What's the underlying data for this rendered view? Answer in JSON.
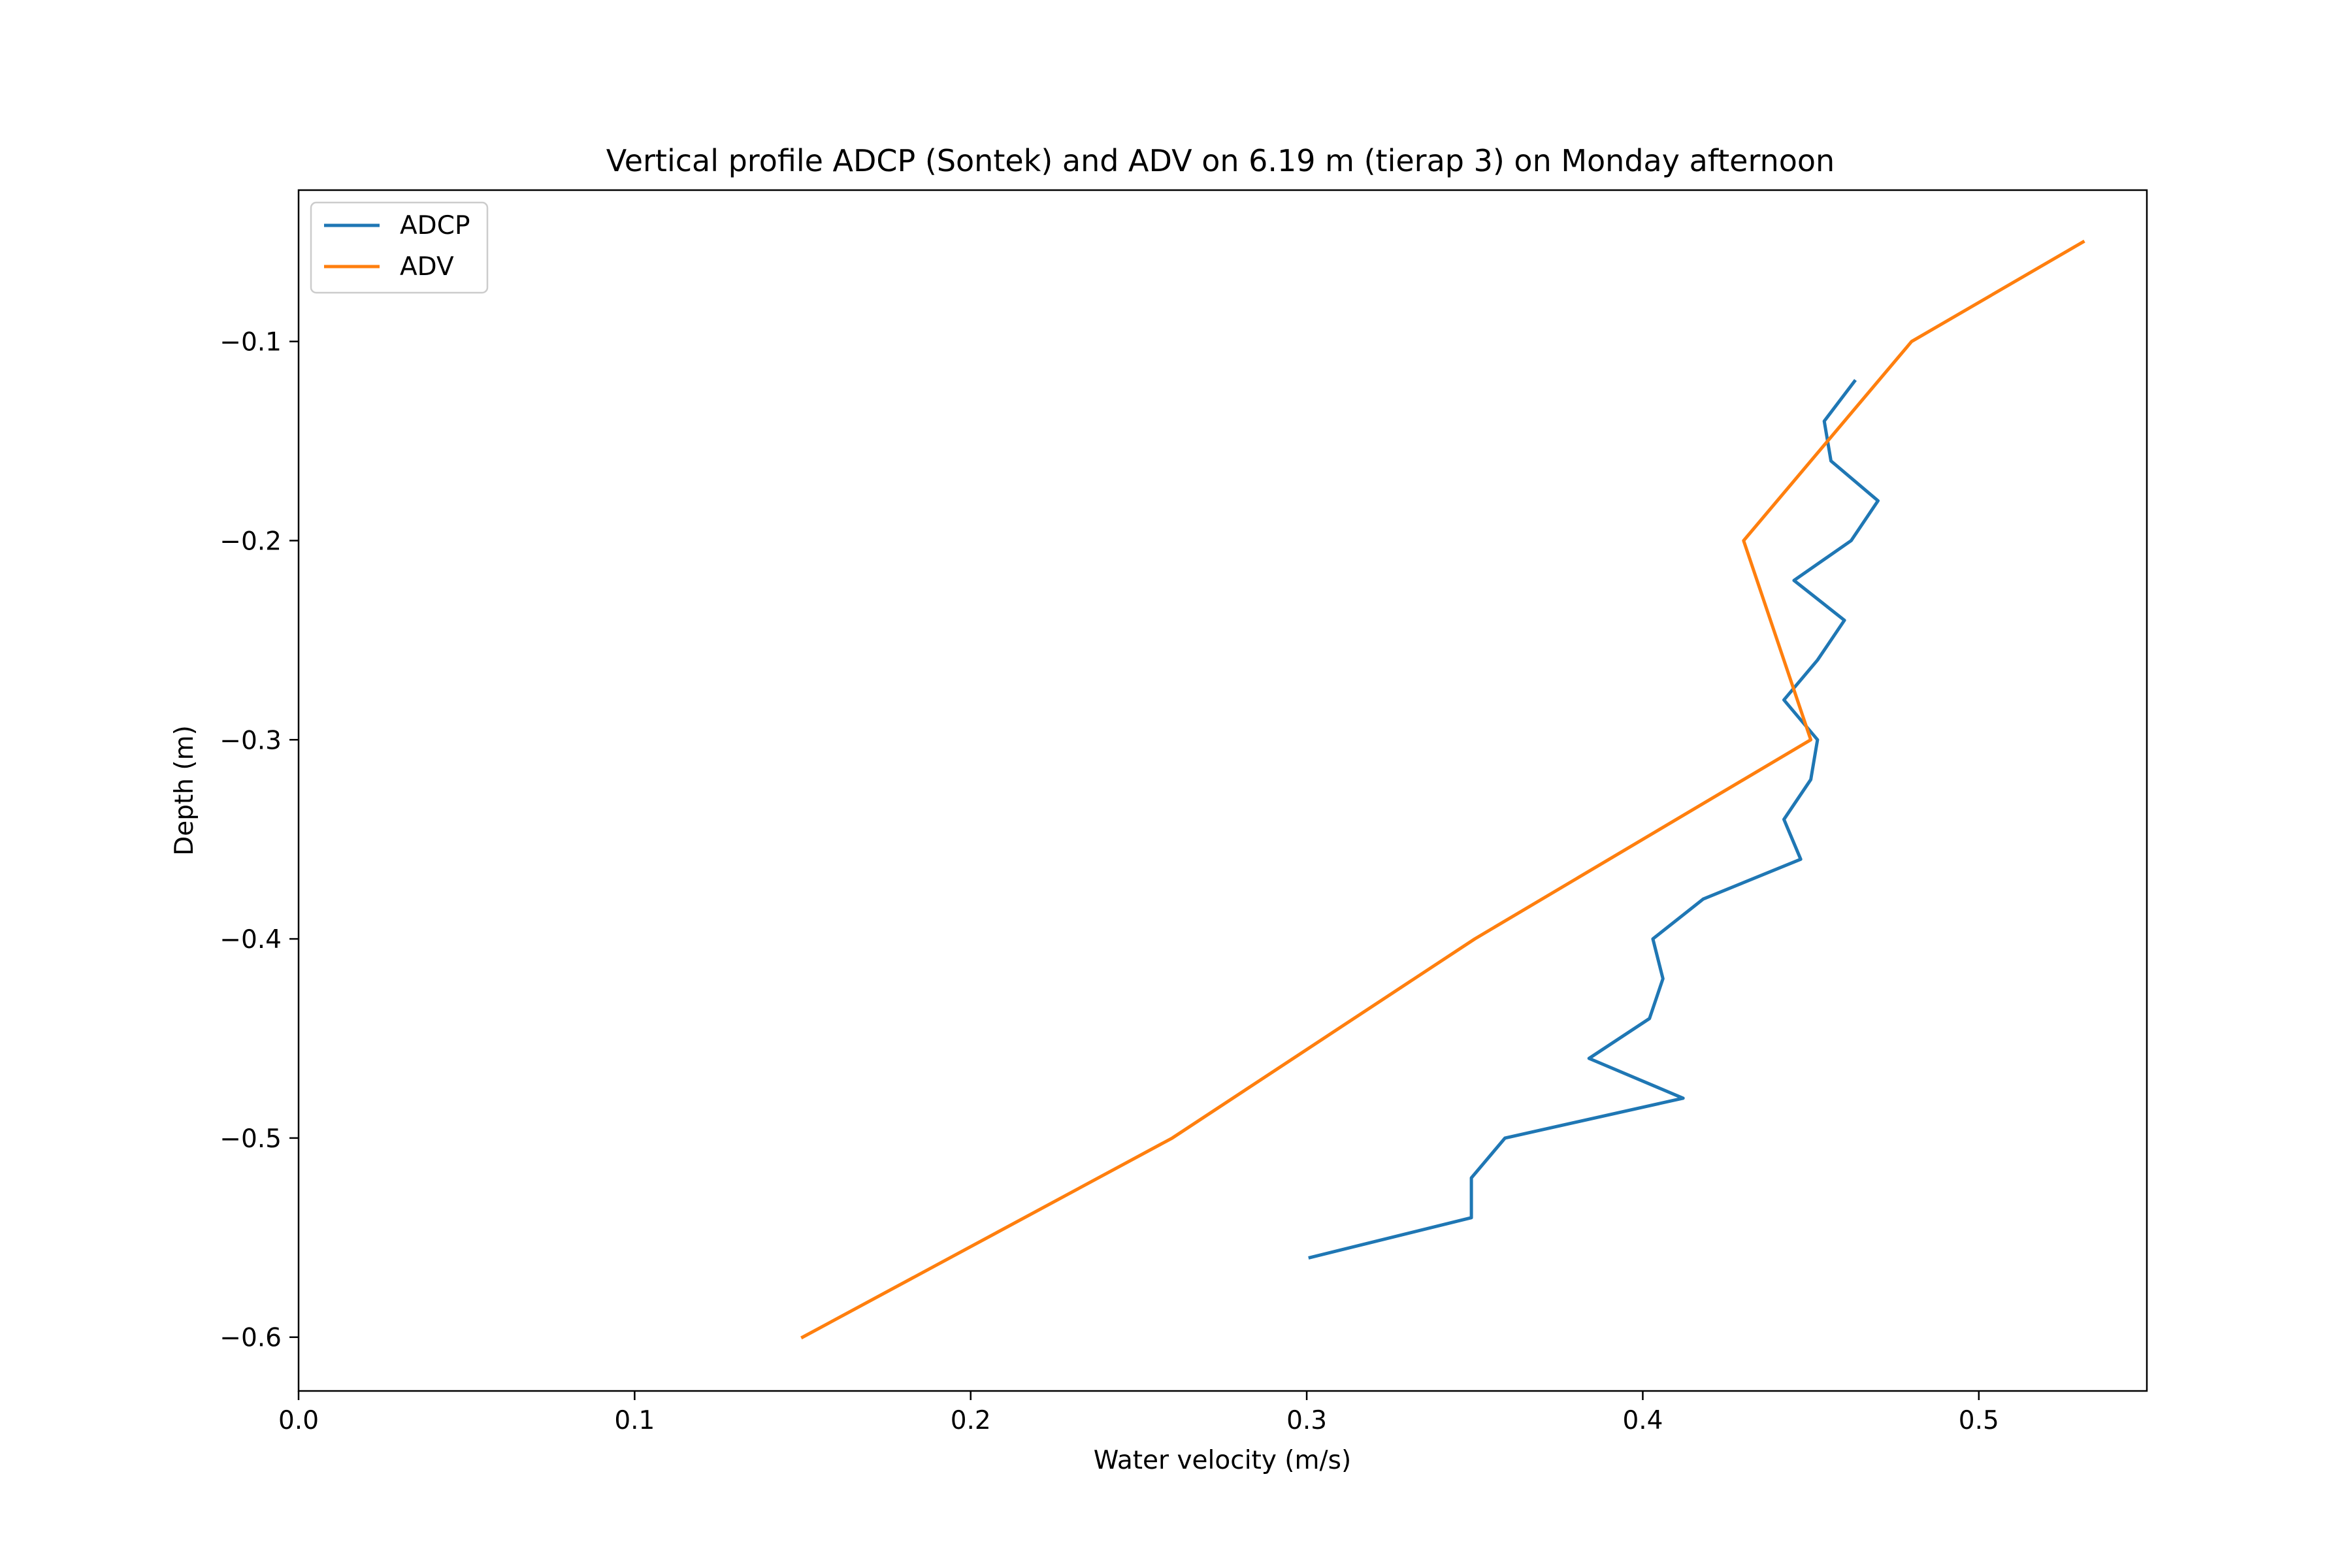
{
  "colors": {
    "adcp": "#1f77b4",
    "adv": "#ff7f0e",
    "axes": "#000000",
    "background": "#ffffff"
  },
  "chart_data": {
    "type": "line",
    "title": "Vertical profile ADCP (Sontek) and ADV on 6.19 m (tierap 3) on Monday afternoon",
    "xlabel": "Water velocity (m/s)",
    "ylabel": "Depth (m)",
    "xlim": [
      0.0,
      0.55
    ],
    "ylim": [
      -0.627,
      -0.024
    ],
    "xticks": [
      0.0,
      0.1,
      0.2,
      0.3,
      0.4,
      0.5
    ],
    "xtick_labels": [
      "0.0",
      "0.1",
      "0.2",
      "0.3",
      "0.4",
      "0.5"
    ],
    "yticks": [
      -0.1,
      -0.2,
      -0.3,
      -0.4,
      -0.5,
      -0.6
    ],
    "ytick_labels": [
      "−0.1",
      "−0.2",
      "−0.3",
      "−0.4",
      "−0.5",
      "−0.6"
    ],
    "grid": false,
    "legend_position": "top-left",
    "series": [
      {
        "name": "ADCP",
        "color_key": "adcp",
        "x": [
          0.463,
          0.454,
          0.456,
          0.47,
          0.462,
          0.445,
          0.46,
          0.452,
          0.442,
          0.452,
          0.45,
          0.442,
          0.447,
          0.418,
          0.403,
          0.406,
          0.402,
          0.384,
          0.412,
          0.359,
          0.349,
          0.349,
          0.301
        ],
        "y": [
          -0.12,
          -0.14,
          -0.16,
          -0.18,
          -0.2,
          -0.22,
          -0.24,
          -0.26,
          -0.28,
          -0.3,
          -0.32,
          -0.34,
          -0.36,
          -0.38,
          -0.4,
          -0.42,
          -0.44,
          -0.46,
          -0.48,
          -0.5,
          -0.52,
          -0.54,
          -0.56
        ]
      },
      {
        "name": "ADV",
        "color_key": "adv",
        "x": [
          0.531,
          0.48,
          0.43,
          0.45,
          0.35,
          0.26,
          0.15
        ],
        "y": [
          -0.05,
          -0.1,
          -0.2,
          -0.3,
          -0.4,
          -0.5,
          -0.6
        ]
      }
    ]
  }
}
